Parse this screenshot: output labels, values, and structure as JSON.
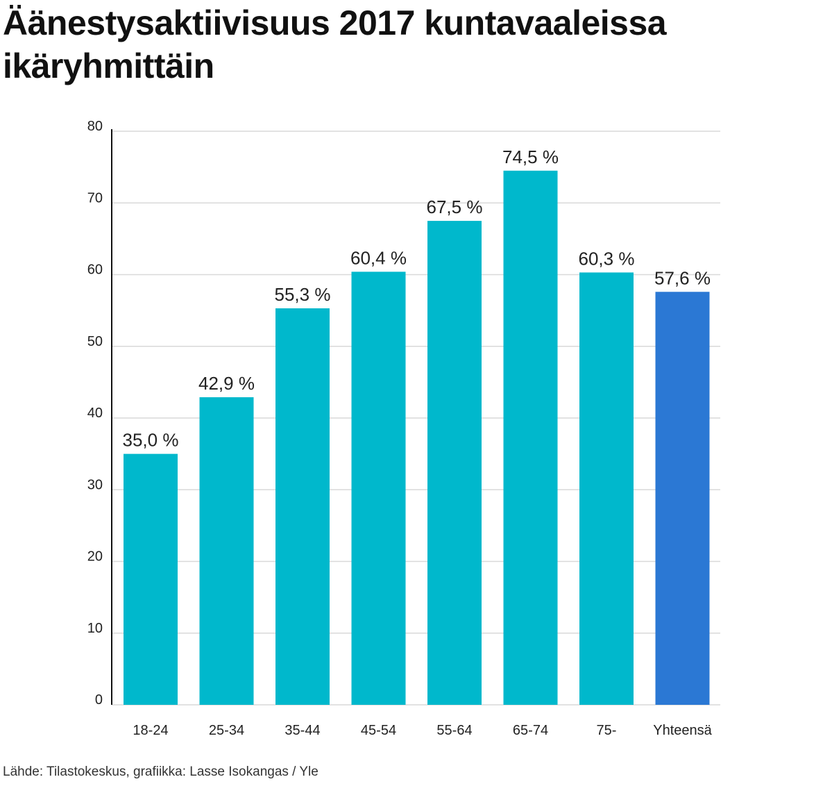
{
  "header": {
    "title_line1": "Äänestysaktiivisuus 2017 kuntavaaleissa",
    "title_line2": "ikäryhmittäin"
  },
  "footer": {
    "source": "Lähde: Tilastokeskus, grafiikka: Lasse Isokangas / Yle"
  },
  "colors": {
    "bar": "#00b8cc",
    "bar_highlight": "#2b78d4",
    "grid": "#d9d9d9",
    "axis": "#111111"
  },
  "chart_data": {
    "type": "bar",
    "categories": [
      "18-24",
      "25-34",
      "35-44",
      "45-54",
      "55-64",
      "65-74",
      "75-",
      "Yhteensä"
    ],
    "values": [
      35.0,
      42.9,
      55.3,
      60.4,
      67.5,
      74.5,
      60.3,
      57.6
    ],
    "value_labels": [
      "35,0 %",
      "42,9 %",
      "55,3 %",
      "60,4 %",
      "67,5 %",
      "74,5 %",
      "60,3 %",
      "57,6 %"
    ],
    "highlight_index": 7,
    "ylim": [
      0,
      80
    ],
    "yticks": [
      0,
      10,
      20,
      30,
      40,
      50,
      60,
      70,
      80
    ],
    "grid": true
  }
}
